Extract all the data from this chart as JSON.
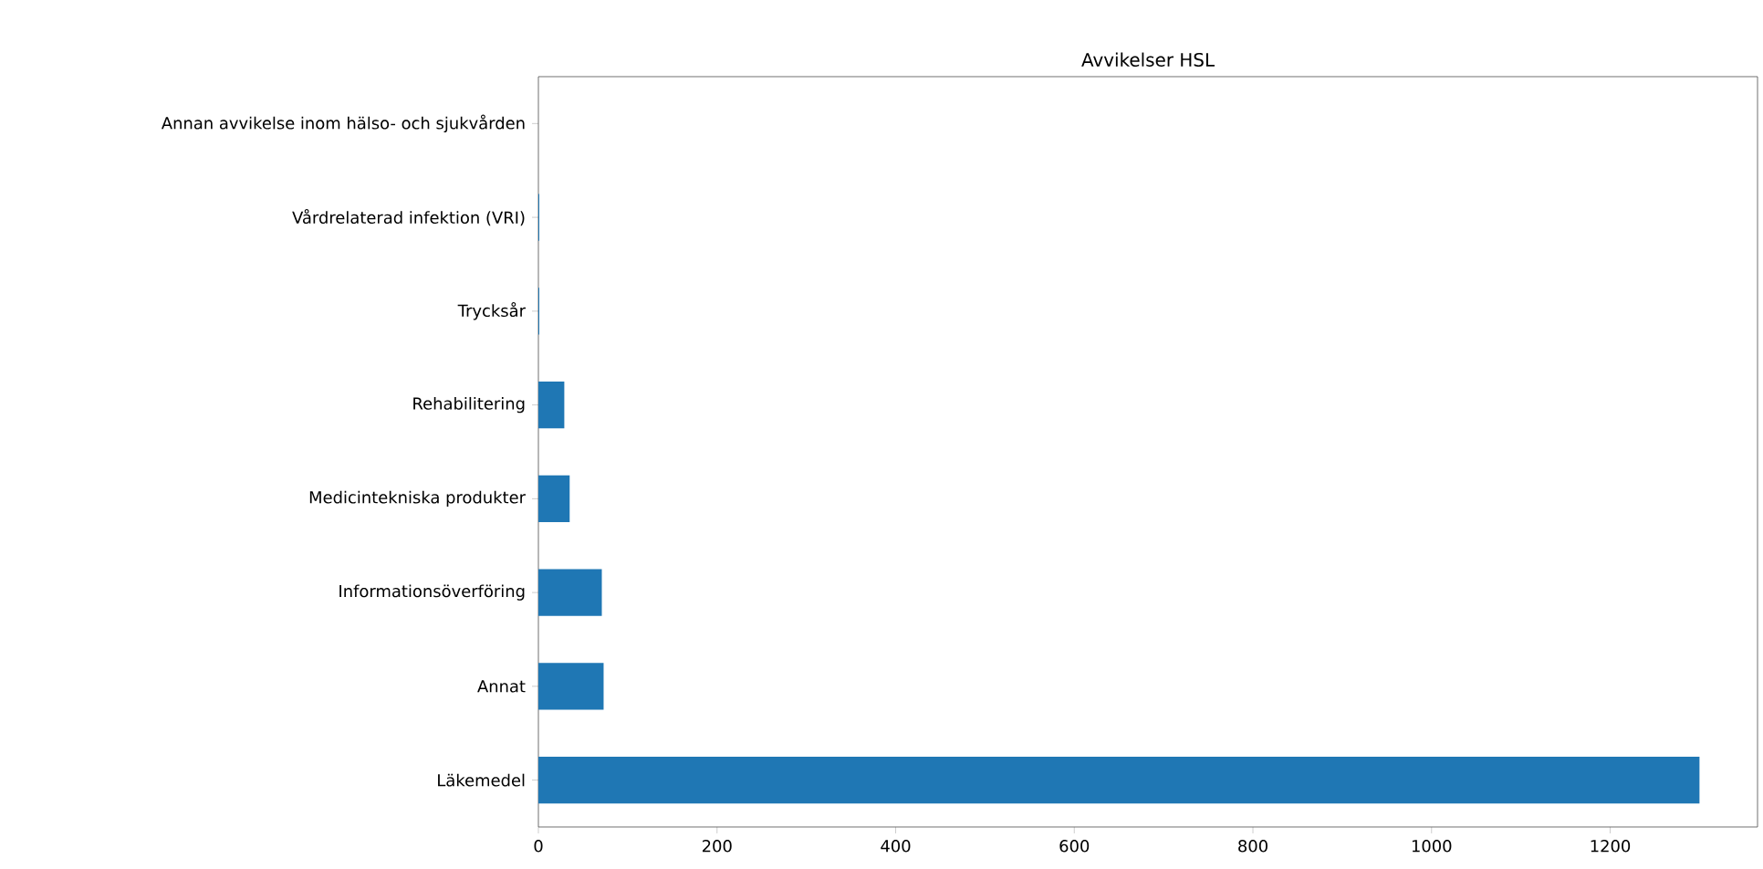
{
  "chart_data": {
    "type": "bar",
    "orientation": "horizontal",
    "title": "Avvikelser HSL",
    "categories": [
      "Annan avvikelse inom hälso- och sjukvården",
      "Vårdrelaterad infektion (VRI)",
      "Trycksår",
      "Rehabilitering",
      "Medicintekniska produkter",
      "Informationsöverföring",
      "Annat",
      "Läkemedel"
    ],
    "values": [
      0,
      1,
      1,
      29,
      35,
      71,
      73,
      1300
    ],
    "color": "#1f77b4",
    "xlim": [
      0,
      1365
    ],
    "xticks": [
      0,
      200,
      400,
      600,
      800,
      1000,
      1200
    ],
    "grid": false
  }
}
